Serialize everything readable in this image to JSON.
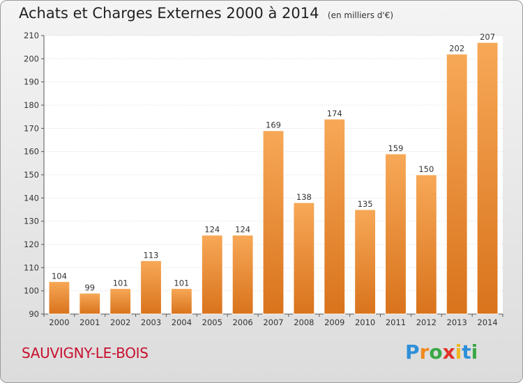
{
  "chart_data": {
    "type": "bar",
    "title": "Achats et Charges Externes 2000 à 2014",
    "unit": "(en milliers d'€)",
    "categories": [
      "2000",
      "2001",
      "2002",
      "2003",
      "2004",
      "2005",
      "2006",
      "2007",
      "2008",
      "2009",
      "2010",
      "2011",
      "2012",
      "2013",
      "2014"
    ],
    "values": [
      104,
      99,
      101,
      113,
      101,
      124,
      124,
      169,
      138,
      174,
      135,
      159,
      150,
      202,
      207
    ],
    "ylim": [
      90,
      210
    ],
    "yticks": [
      90,
      100,
      110,
      120,
      130,
      140,
      150,
      160,
      170,
      180,
      190,
      200,
      210
    ],
    "grid": true,
    "bar_color": "#f0923a"
  },
  "commune": "SAUVIGNY-LE-BOIS",
  "logo": {
    "letters": [
      "P",
      "r",
      "o",
      "x",
      "i",
      "t",
      "i"
    ],
    "colors": [
      "#2e8fd8",
      "#f08a1e",
      "#3aa845",
      "#e0332a",
      "#f0b81e",
      "#2e8fd8",
      "#3aa845"
    ]
  }
}
